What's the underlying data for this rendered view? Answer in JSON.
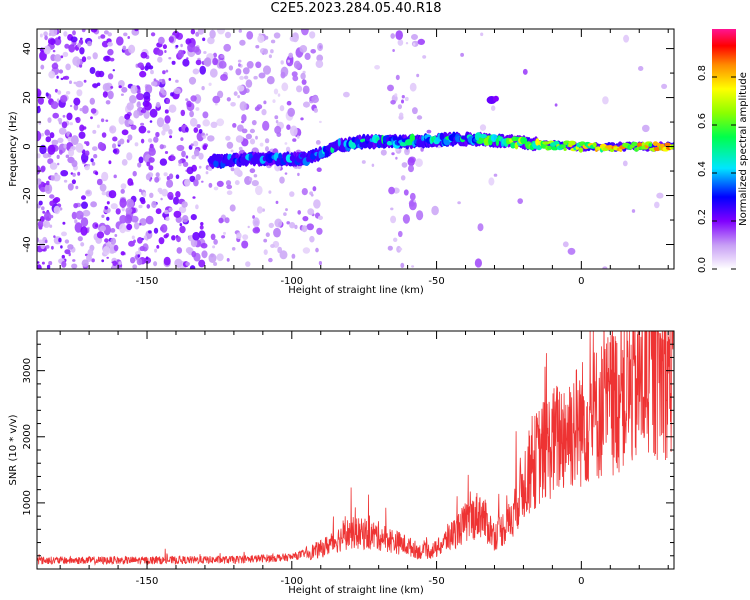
{
  "title": "C2E5.2023.284.05.40.R18",
  "chart_data": [
    {
      "type": "heatmap",
      "xlabel": "Height of straight line (km)",
      "ylabel": "Frequency (Hz)",
      "xlim": [
        -188,
        32
      ],
      "ylim": [
        -50,
        48
      ],
      "xticks": [
        -150,
        -100,
        -50,
        0
      ],
      "yticks": [
        -40,
        -20,
        0,
        20,
        40
      ],
      "colorbar": {
        "label": "Normalized spectral amplitude",
        "ticks": [
          "0.0",
          "0.2",
          "0.4",
          "0.6",
          "0.8"
        ],
        "tick_values": [
          0.0,
          0.2,
          0.4,
          0.6,
          0.8
        ],
        "range": [
          0,
          1
        ],
        "colormap": [
          "#ffffff",
          "#c79ef5",
          "#8000ff",
          "#0000ff",
          "#00e6ff",
          "#00ff4c",
          "#8cff00",
          "#ffff00",
          "#ff8c00",
          "#ff0000",
          "#ff1493"
        ]
      },
      "ridge": {
        "x": [
          -125,
          -110,
          -95,
          -85,
          -75,
          -60,
          -45,
          -35,
          -25,
          -15,
          0,
          15,
          30
        ],
        "freq": [
          -6,
          -5,
          -5,
          0,
          2,
          2,
          3,
          3,
          2,
          1,
          0,
          0,
          0
        ],
        "amplitude": [
          0.35,
          0.4,
          0.45,
          0.5,
          0.5,
          0.55,
          0.55,
          0.6,
          0.7,
          0.75,
          0.8,
          0.85,
          0.9
        ]
      }
    },
    {
      "type": "line",
      "xlabel": "Height of straight line (km)",
      "ylabel": "SNR (10 * v/v)",
      "xlim": [
        -188,
        32
      ],
      "ylim": [
        0,
        3600
      ],
      "xticks": [
        -150,
        -100,
        -50,
        0
      ],
      "yticks": [
        1000,
        2000,
        3000
      ],
      "color": "#ee3333",
      "envelope": {
        "x": [
          -188,
          -150,
          -120,
          -100,
          -90,
          -80,
          -70,
          -60,
          -55,
          -50,
          -45,
          -40,
          -35,
          -30,
          -25,
          -20,
          -15,
          -10,
          -5,
          0,
          10,
          20,
          32
        ],
        "y": [
          130,
          130,
          140,
          180,
          300,
          550,
          500,
          350,
          250,
          300,
          500,
          700,
          850,
          500,
          700,
          1300,
          1700,
          1900,
          2100,
          2200,
          2500,
          2800,
          3050
        ]
      }
    }
  ]
}
